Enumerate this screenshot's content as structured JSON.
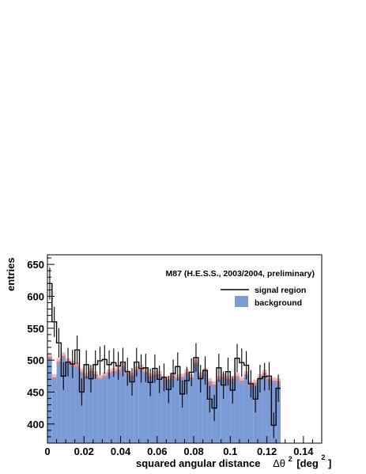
{
  "chart_data": {
    "type": "histogram",
    "title": "M87 (H.E.S.S., 2003/2004, preliminary)",
    "xlabel": "squared angular distance",
    "xlabel_symbol": "Δθ",
    "xlabel_sup": "2",
    "xlabel_unit": "[deg",
    "xlabel_unit_sup": "2",
    "xlabel_unit_close": "]",
    "ylabel": "entries",
    "xlim": [
      0,
      0.15
    ],
    "ylim": [
      370,
      665
    ],
    "xticks": [
      0,
      0.02,
      0.04,
      0.06,
      0.08,
      0.1,
      0.12,
      0.14
    ],
    "xtick_labels": [
      "0",
      "0.02",
      "0.04",
      "0.06",
      "0.08",
      "0.1",
      "0.12",
      "0.14"
    ],
    "yticks": [
      400,
      450,
      500,
      550,
      600,
      650
    ],
    "ytick_labels": [
      "400",
      "450",
      "500",
      "550",
      "600",
      "650"
    ],
    "bin_width": 0.0025,
    "legend": {
      "placement": "top-right",
      "entries": [
        {
          "name": "signal region",
          "style": "line"
        },
        {
          "name": "background",
          "style": "fill"
        }
      ]
    },
    "colors": {
      "background_fill": "#7b9bd6",
      "background_error": "#ef7c7c",
      "signal_line": "#000000"
    },
    "series": [
      {
        "name": "signal region",
        "values": [
          620,
          560,
          527,
          475,
          497,
          494,
          516,
          450,
          493,
          471,
          493,
          499,
          501,
          493,
          496,
          491,
          497,
          482,
          466,
          497,
          487,
          488,
          465,
          487,
          470,
          473,
          454,
          479,
          490,
          447,
          468,
          481,
          504,
          471,
          484,
          439,
          425,
          488,
          461,
          482,
          453,
          503,
          496,
          492,
          463,
          439,
          471,
          474,
          475,
          398,
          456
        ]
      },
      {
        "name": "background",
        "values": [
          505,
          473,
          498,
          507,
          498,
          494,
          492,
          482,
          475,
          483,
          478,
          472,
          476,
          481,
          483,
          485,
          491,
          480,
          476,
          485,
          488,
          482,
          475,
          478,
          478,
          471,
          470,
          476,
          473,
          474,
          481,
          473,
          496,
          476,
          483,
          467,
          462,
          470,
          474,
          471,
          471,
          475,
          468,
          478,
          462,
          465,
          473,
          480,
          471,
          468,
          467
        ]
      }
    ]
  }
}
